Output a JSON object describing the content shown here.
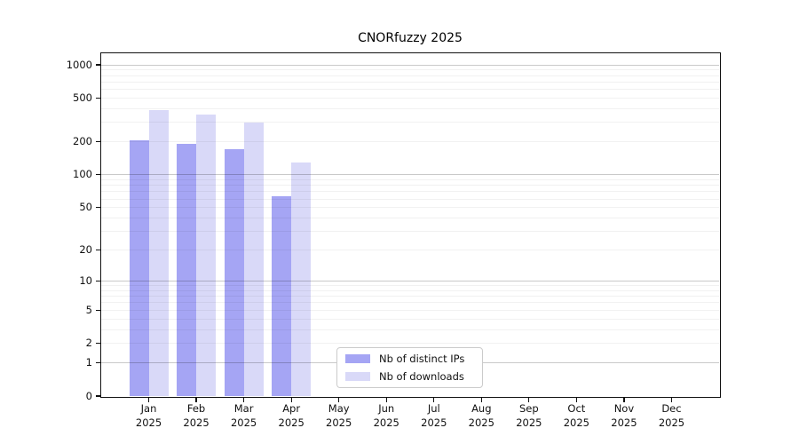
{
  "chart_data": {
    "type": "bar",
    "title": "CNORfuzzy 2025",
    "categories": [
      "Jan",
      "Feb",
      "Mar",
      "Apr",
      "May",
      "Jun",
      "Jul",
      "Aug",
      "Sep",
      "Oct",
      "Nov",
      "Dec"
    ],
    "x_tick_second_line": "2025",
    "series": [
      {
        "name": "Nb of distinct IPs",
        "color": "#a5a5f4",
        "values": [
          205,
          190,
          172,
          64,
          0,
          0,
          0,
          0,
          0,
          0,
          0,
          0
        ]
      },
      {
        "name": "Nb of downloads",
        "color": "#d9d9f8",
        "values": [
          390,
          355,
          300,
          130,
          0,
          0,
          0,
          0,
          0,
          0,
          0,
          0
        ]
      }
    ],
    "yscale": "log10(value+1)",
    "yticks": [
      0,
      1,
      2,
      5,
      10,
      20,
      50,
      100,
      200,
      500,
      1000
    ],
    "ylim": [
      0,
      1100
    ],
    "grid": "horizontal major (powers of 10, darker) and minor (2-9 multiples, lighter)",
    "legend": {
      "position": "bottom-center inside plot",
      "entries": [
        "Nb of distinct IPs",
        "Nb of downloads"
      ]
    }
  }
}
